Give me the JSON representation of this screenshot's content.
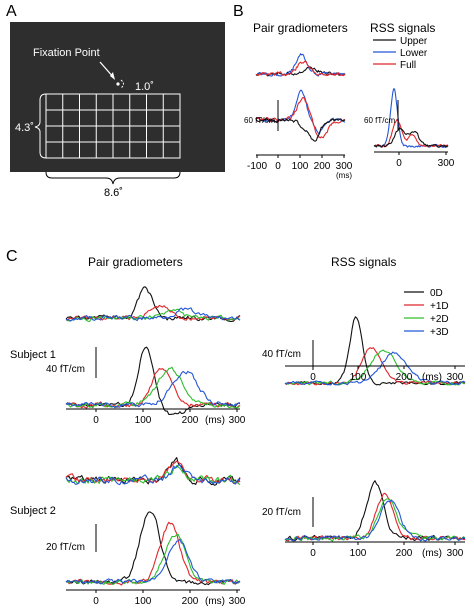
{
  "panel_labels": [
    "A",
    "B",
    "C"
  ],
  "stimulus": {
    "fixation_label": "Fixation Point",
    "offset_label": "1.0˚",
    "height_label": "4.3˚",
    "width_label": "8.6˚",
    "grid_rows": 4,
    "grid_cols": 8
  },
  "headers": {
    "b_left": "Pair gradiometers",
    "b_right": "RSS signals",
    "c_left": "Pair gradiometers",
    "c_right": "RSS signals"
  },
  "scale_labels": {
    "b_left": "60 fT/cm",
    "b_right": "60 fT/cm",
    "c_s1_left": "40 fT/cm",
    "c_s1_right": "40 fT/cm",
    "c_s2_left": "20 fT/cm",
    "c_s2_right": "20 fT/cm"
  },
  "subjects": [
    "Subject 1",
    "Subject 2"
  ],
  "axes": {
    "b_left_ticks": [
      "-100",
      "0",
      "100",
      "200",
      "300"
    ],
    "b_right_ticks": [
      "0",
      "300"
    ],
    "c_ticks": [
      "0",
      "100",
      "200",
      "300"
    ],
    "unit": "(ms)"
  },
  "colors": {
    "black": "#111111",
    "blue": "#2457d6",
    "red": "#e0262a",
    "green": "#2fbf2f",
    "panel_bg": "#2e2e2e"
  },
  "chart_data": [
    {
      "type": "line",
      "name_panel": "B",
      "legend": [
        "Upper",
        "Lower",
        "Full"
      ],
      "x_unit": "ms",
      "xlim": [
        -100,
        300
      ],
      "series_peaks_ms": {
        "Upper": 160,
        "Lower": 110,
        "Full": 120
      },
      "rss_peak_fT_cm": {
        "Upper": 30,
        "Lower": 80,
        "Full": 40
      }
    },
    {
      "type": "line",
      "name_panel": "C",
      "legend": [
        "0D",
        "+1D",
        "+2D",
        "+3D"
      ],
      "x_unit": "ms",
      "xlim": [
        -50,
        300
      ],
      "subject1_rss_peak": {
        "0D": {
          "latency_ms": 108,
          "amplitude_fT_cm": 60
        },
        "+1D": {
          "latency_ms": 140,
          "amplitude_fT_cm": 34
        },
        "+2D": {
          "latency_ms": 160,
          "amplitude_fT_cm": 30
        },
        "+3D": {
          "latency_ms": 190,
          "amplitude_fT_cm": 28
        }
      },
      "subject2_rss_peak": {
        "0D": {
          "latency_ms": 135,
          "amplitude_fT_cm": 33
        },
        "+1D": {
          "latency_ms": 155,
          "amplitude_fT_cm": 28
        },
        "+2D": {
          "latency_ms": 160,
          "amplitude_fT_cm": 23
        },
        "+3D": {
          "latency_ms": 165,
          "amplitude_fT_cm": 21
        }
      }
    }
  ]
}
